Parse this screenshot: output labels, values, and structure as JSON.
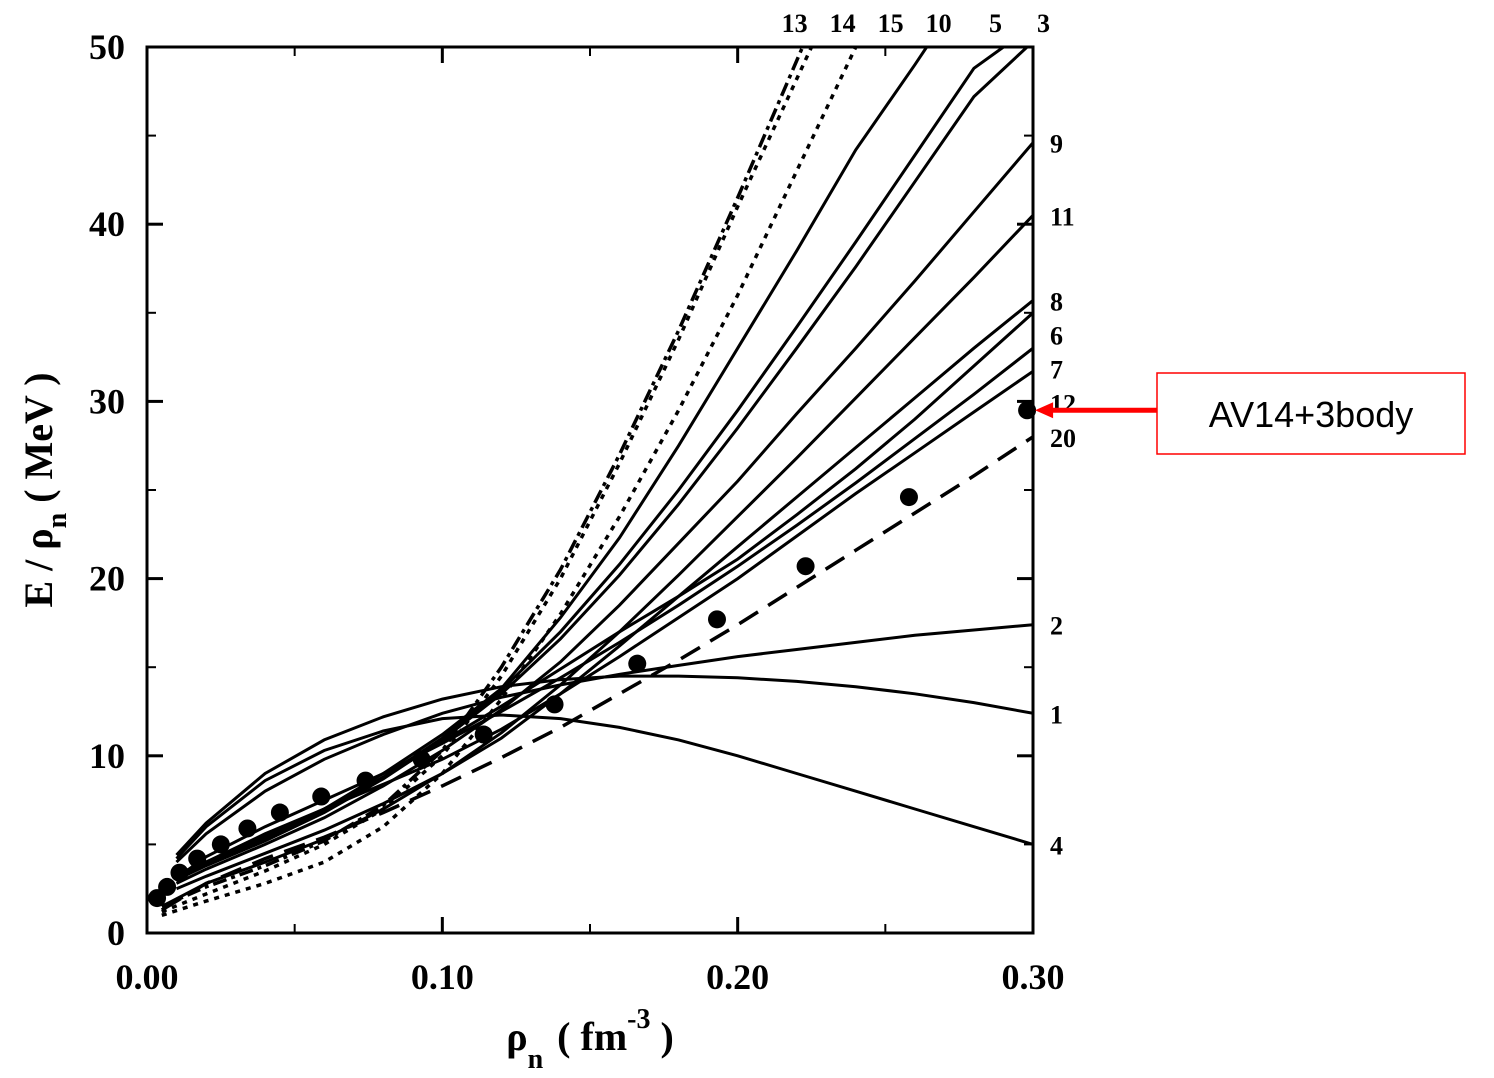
{
  "chart_data": {
    "type": "line",
    "x_label": {
      "main": "ρ",
      "sub": "n",
      "open": "( fm",
      "sup": "-3",
      "close": " )"
    },
    "y_label": {
      "main": "E / ρ",
      "sub": "n",
      "unit": " ( MeV )"
    },
    "xlim": [
      0,
      0.3
    ],
    "ylim": [
      0,
      50
    ],
    "xticks": [
      {
        "value": 0,
        "label": "0.00"
      },
      {
        "value": 0.1,
        "label": "0.10"
      },
      {
        "value": 0.2,
        "label": "0.20"
      },
      {
        "value": 0.3,
        "label": "0.30"
      }
    ],
    "xminor": [
      0.05,
      0.15,
      0.25
    ],
    "yticks": [
      0,
      10,
      20,
      30,
      40,
      50
    ],
    "yminor": [
      5,
      15,
      25,
      35,
      45
    ],
    "color": "#000000",
    "series": [
      {
        "name": "13",
        "style": "dashdot",
        "x": [
          0.005,
          0.02,
          0.04,
          0.06,
          0.08,
          0.1,
          0.12,
          0.14,
          0.16,
          0.18,
          0.2,
          0.222
        ],
        "values": [
          1.5,
          2.6,
          3.8,
          5.2,
          7.2,
          10.3,
          15.0,
          20.5,
          27.0,
          34.0,
          41.5,
          50
        ]
      },
      {
        "name": "14",
        "style": "dotted",
        "x": [
          0.005,
          0.02,
          0.04,
          0.06,
          0.08,
          0.1,
          0.12,
          0.14,
          0.16,
          0.18,
          0.2,
          0.225
        ],
        "values": [
          1.2,
          2.2,
          3.5,
          5.0,
          7.0,
          10.0,
          14.5,
          20.0,
          26.5,
          33.5,
          41.0,
          50
        ]
      },
      {
        "name": "15",
        "style": "dotted",
        "x": [
          0.005,
          0.02,
          0.04,
          0.06,
          0.08,
          0.1,
          0.12,
          0.14,
          0.16,
          0.18,
          0.2,
          0.22,
          0.24
        ],
        "values": [
          1.0,
          1.8,
          2.8,
          4.0,
          6.0,
          9.0,
          13.2,
          18.0,
          23.5,
          29.5,
          36.0,
          43.0,
          50
        ]
      },
      {
        "name": "10",
        "style": "solid",
        "x": [
          0.01,
          0.02,
          0.04,
          0.06,
          0.08,
          0.1,
          0.12,
          0.14,
          0.16,
          0.18,
          0.2,
          0.22,
          0.24,
          0.26,
          0.264
        ],
        "values": [
          3.2,
          4.0,
          5.4,
          7.0,
          9.0,
          11.2,
          13.8,
          17.8,
          22.3,
          27.5,
          33.0,
          38.5,
          44.2,
          49.0,
          50
        ]
      },
      {
        "name": "5",
        "style": "solid",
        "x": [
          0.01,
          0.02,
          0.04,
          0.06,
          0.08,
          0.1,
          0.12,
          0.14,
          0.16,
          0.18,
          0.2,
          0.22,
          0.24,
          0.26,
          0.28,
          0.29
        ],
        "values": [
          3.1,
          3.9,
          5.3,
          6.9,
          8.8,
          11.0,
          13.7,
          17.0,
          20.8,
          25.0,
          29.5,
          34.2,
          39.0,
          43.9,
          48.8,
          50
        ]
      },
      {
        "name": "3",
        "style": "solid",
        "x": [
          0.01,
          0.02,
          0.04,
          0.06,
          0.08,
          0.1,
          0.12,
          0.14,
          0.16,
          0.18,
          0.2,
          0.22,
          0.24,
          0.26,
          0.28,
          0.298
        ],
        "values": [
          3.0,
          3.8,
          5.2,
          6.8,
          8.7,
          10.9,
          13.5,
          16.6,
          20.2,
          24.2,
          28.5,
          33.0,
          37.6,
          42.4,
          47.2,
          50
        ]
      },
      {
        "name": "9",
        "style": "solid",
        "x": [
          0.01,
          0.02,
          0.04,
          0.06,
          0.08,
          0.1,
          0.12,
          0.14,
          0.16,
          0.18,
          0.2,
          0.22,
          0.24,
          0.26,
          0.28,
          0.3
        ],
        "values": [
          2.8,
          3.6,
          5.0,
          6.5,
          8.3,
          10.3,
          12.6,
          15.3,
          18.5,
          22.0,
          25.5,
          29.3,
          33.0,
          36.8,
          40.7,
          44.6
        ]
      },
      {
        "name": "11",
        "style": "solid",
        "x": [
          0.005,
          0.02,
          0.04,
          0.06,
          0.08,
          0.1,
          0.12,
          0.14,
          0.16,
          0.18,
          0.2,
          0.22,
          0.24,
          0.26,
          0.28,
          0.3
        ],
        "values": [
          1.5,
          2.8,
          4.0,
          5.3,
          7.0,
          9.0,
          11.3,
          14.0,
          17.0,
          20.2,
          23.5,
          26.8,
          30.2,
          33.6,
          37.0,
          40.5
        ]
      },
      {
        "name": "8",
        "style": "solid",
        "x": [
          0.01,
          0.02,
          0.04,
          0.06,
          0.08,
          0.1,
          0.12,
          0.14,
          0.16,
          0.18,
          0.2,
          0.22,
          0.24,
          0.26,
          0.28,
          0.3
        ],
        "values": [
          2.5,
          3.2,
          4.5,
          5.8,
          7.3,
          9.0,
          11.0,
          13.5,
          16.2,
          19.0,
          21.8,
          24.6,
          27.4,
          30.2,
          33.0,
          35.7
        ]
      },
      {
        "name": "6",
        "style": "solid",
        "x": [
          0.01,
          0.02,
          0.04,
          0.06,
          0.08,
          0.1,
          0.12,
          0.14,
          0.16,
          0.18,
          0.2,
          0.22,
          0.24,
          0.26,
          0.28,
          0.3
        ],
        "values": [
          3.3,
          4.0,
          5.5,
          7.0,
          8.8,
          10.8,
          12.8,
          14.9,
          17.0,
          19.0,
          21.1,
          23.6,
          26.2,
          29.0,
          32.0,
          35.0
        ]
      },
      {
        "name": "7",
        "style": "solid",
        "x": [
          0.01,
          0.02,
          0.04,
          0.06,
          0.08,
          0.1,
          0.12,
          0.14,
          0.16,
          0.18,
          0.2,
          0.22,
          0.24,
          0.26,
          0.28,
          0.3
        ],
        "values": [
          3.1,
          4.3,
          6.0,
          7.5,
          9.0,
          10.7,
          12.5,
          14.4,
          16.4,
          18.5,
          20.7,
          23.0,
          25.4,
          27.9,
          30.4,
          33.0
        ]
      },
      {
        "name": "12",
        "style": "solid",
        "x": [
          0.01,
          0.02,
          0.04,
          0.06,
          0.08,
          0.1,
          0.12,
          0.14,
          0.16,
          0.18,
          0.2,
          0.22,
          0.24,
          0.26,
          0.28,
          0.3
        ],
        "values": [
          3.0,
          4.0,
          5.6,
          7.0,
          8.4,
          9.8,
          11.5,
          13.5,
          15.6,
          17.8,
          20.0,
          22.4,
          24.8,
          27.1,
          29.4,
          31.7
        ]
      },
      {
        "name": "20",
        "style": "dashed",
        "x": [
          0.005,
          0.02,
          0.04,
          0.06,
          0.08,
          0.1,
          0.12,
          0.14,
          0.16,
          0.18,
          0.2,
          0.22,
          0.24,
          0.26,
          0.28,
          0.3
        ],
        "values": [
          1.3,
          2.8,
          4.2,
          5.4,
          6.8,
          8.3,
          9.9,
          11.6,
          13.5,
          15.4,
          17.4,
          19.5,
          21.6,
          23.7,
          25.8,
          28.0
        ]
      },
      {
        "name": "2",
        "style": "solid",
        "x": [
          0.01,
          0.02,
          0.04,
          0.06,
          0.08,
          0.1,
          0.12,
          0.14,
          0.16,
          0.18,
          0.2,
          0.22,
          0.24,
          0.26,
          0.28,
          0.3
        ],
        "values": [
          4.0,
          5.6,
          8.0,
          9.8,
          11.2,
          12.4,
          13.3,
          14.0,
          14.6,
          15.1,
          15.6,
          16.0,
          16.4,
          16.8,
          17.1,
          17.4
        ]
      },
      {
        "name": "1",
        "style": "solid",
        "x": [
          0.01,
          0.02,
          0.04,
          0.06,
          0.08,
          0.1,
          0.12,
          0.14,
          0.16,
          0.18,
          0.2,
          0.22,
          0.24,
          0.26,
          0.28,
          0.3
        ],
        "values": [
          4.4,
          6.2,
          9.0,
          10.9,
          12.2,
          13.2,
          13.9,
          14.3,
          14.5,
          14.5,
          14.4,
          14.2,
          13.9,
          13.5,
          13.0,
          12.4
        ]
      },
      {
        "name": "4",
        "style": "solid",
        "x": [
          0.01,
          0.02,
          0.04,
          0.06,
          0.08,
          0.1,
          0.12,
          0.14,
          0.16,
          0.18,
          0.2,
          0.22,
          0.24,
          0.26,
          0.28,
          0.3
        ],
        "values": [
          4.2,
          6.0,
          8.6,
          10.3,
          11.4,
          12.1,
          12.3,
          12.1,
          11.6,
          10.9,
          10.0,
          9.0,
          8.0,
          7.0,
          6.0,
          5.0
        ]
      }
    ],
    "points": {
      "x": [
        0.0034,
        0.0068,
        0.011,
        0.017,
        0.025,
        0.034,
        0.045,
        0.059,
        0.074,
        0.093,
        0.114,
        0.138,
        0.166,
        0.193,
        0.223,
        0.258,
        0.298
      ],
      "values": [
        1.97,
        2.6,
        3.4,
        4.2,
        5.0,
        5.9,
        6.8,
        7.7,
        8.6,
        9.8,
        11.2,
        12.9,
        15.2,
        17.7,
        20.7,
        24.6,
        29.5
      ]
    },
    "annotation": {
      "text": "AV14+3body",
      "color": "#ff0000",
      "point": 16
    }
  }
}
